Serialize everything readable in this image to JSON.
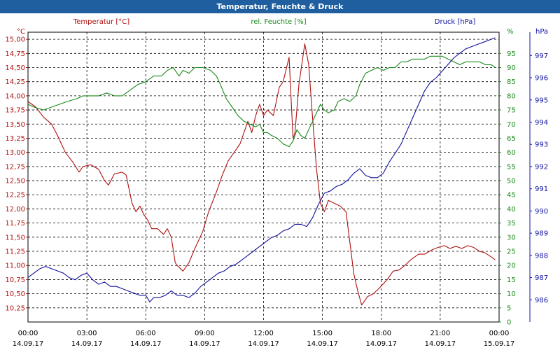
{
  "window": {
    "title": "Temperatur, Feuchte & Druck"
  },
  "chart_data": {
    "type": "line",
    "title": "Temperatur, Feuchte & Druck",
    "colors": {
      "temperature": "#b01010",
      "humidity": "#1a8a1a",
      "pressure": "#1010a0",
      "grid": "#000000"
    },
    "grid": true,
    "x": {
      "tick_times": [
        "00:00",
        "03:00",
        "06:00",
        "09:00",
        "12:00",
        "15:00",
        "18:00",
        "21:00",
        "00:00"
      ],
      "tick_dates": [
        "14.09.17",
        "14.09.17",
        "14.09.17",
        "14.09.17",
        "14.09.17",
        "14.09.17",
        "14.09.17",
        "14.09.17",
        "15.09.17"
      ],
      "range_hours": [
        0,
        24
      ]
    },
    "axes": {
      "temperature": {
        "label": "Temperatur [°C]",
        "unit": "°C",
        "ylim": [
          10.0,
          15.125
        ],
        "ticks": [
          "10,25",
          "10,50",
          "10,75",
          "11,00",
          "11,25",
          "11,50",
          "11,75",
          "12,00",
          "12,25",
          "12,50",
          "12,75",
          "13,00",
          "13,25",
          "13,50",
          "13,75",
          "14,00",
          "14,25",
          "14,50",
          "14,75",
          "15,00"
        ]
      },
      "humidity": {
        "label": "rel. Feuchte [%]",
        "unit": "%",
        "ylim": [
          0,
          102.5
        ],
        "ticks": [
          "0",
          "5",
          "10",
          "15",
          "20",
          "25",
          "30",
          "35",
          "40",
          "45",
          "50",
          "55",
          "60",
          "65",
          "70",
          "75",
          "80",
          "85",
          "90",
          "95"
        ]
      },
      "pressure": {
        "label": "Druck [hPa]",
        "unit": "hPa",
        "ylim": [
          985.0,
          998.05
        ],
        "ticks": [
          "986",
          "987",
          "988",
          "989",
          "990",
          "991",
          "992",
          "993",
          "994",
          "995",
          "996",
          "997"
        ]
      }
    },
    "series": [
      {
        "name": "Temperatur [°C]",
        "axis": "temperature",
        "points": [
          [
            0,
            13.9
          ],
          [
            0.4,
            13.8
          ],
          [
            0.8,
            13.62
          ],
          [
            1.2,
            13.5
          ],
          [
            1.5,
            13.3
          ],
          [
            1.9,
            13.0
          ],
          [
            2.3,
            12.82
          ],
          [
            2.6,
            12.65
          ],
          [
            2.8,
            12.75
          ],
          [
            3.2,
            12.78
          ],
          [
            3.6,
            12.7
          ],
          [
            3.9,
            12.5
          ],
          [
            4.1,
            12.42
          ],
          [
            4.4,
            12.62
          ],
          [
            4.8,
            12.65
          ],
          [
            5.0,
            12.6
          ],
          [
            5.3,
            12.1
          ],
          [
            5.5,
            11.95
          ],
          [
            5.7,
            12.05
          ],
          [
            5.9,
            11.9
          ],
          [
            6.1,
            11.8
          ],
          [
            6.3,
            11.65
          ],
          [
            6.6,
            11.65
          ],
          [
            6.9,
            11.55
          ],
          [
            7.1,
            11.65
          ],
          [
            7.3,
            11.5
          ],
          [
            7.5,
            11.05
          ],
          [
            7.6,
            11.0
          ],
          [
            7.9,
            10.9
          ],
          [
            8.2,
            11.05
          ],
          [
            8.5,
            11.3
          ],
          [
            8.9,
            11.6
          ],
          [
            9.2,
            11.95
          ],
          [
            9.6,
            12.3
          ],
          [
            9.9,
            12.6
          ],
          [
            10.2,
            12.85
          ],
          [
            10.5,
            13.0
          ],
          [
            10.8,
            13.15
          ],
          [
            11.0,
            13.35
          ],
          [
            11.2,
            13.55
          ],
          [
            11.4,
            13.35
          ],
          [
            11.6,
            13.65
          ],
          [
            11.8,
            13.85
          ],
          [
            12.0,
            13.65
          ],
          [
            12.2,
            13.75
          ],
          [
            12.5,
            13.65
          ],
          [
            12.8,
            14.15
          ],
          [
            13.0,
            14.25
          ],
          [
            13.3,
            14.68
          ],
          [
            13.5,
            13.25
          ],
          [
            13.6,
            13.35
          ],
          [
            13.8,
            14.2
          ],
          [
            14.1,
            14.92
          ],
          [
            14.3,
            14.55
          ],
          [
            14.5,
            13.6
          ],
          [
            14.7,
            12.7
          ],
          [
            14.9,
            12.1
          ],
          [
            15.1,
            11.95
          ],
          [
            15.3,
            12.15
          ],
          [
            15.6,
            12.1
          ],
          [
            15.9,
            12.05
          ],
          [
            16.2,
            11.95
          ],
          [
            16.4,
            11.4
          ],
          [
            16.6,
            10.85
          ],
          [
            16.8,
            10.55
          ],
          [
            17.0,
            10.3
          ],
          [
            17.3,
            10.45
          ],
          [
            17.6,
            10.5
          ],
          [
            17.9,
            10.6
          ],
          [
            18.3,
            10.75
          ],
          [
            18.6,
            10.9
          ],
          [
            18.9,
            10.92
          ],
          [
            19.2,
            11.0
          ],
          [
            19.5,
            11.1
          ],
          [
            19.9,
            11.2
          ],
          [
            20.2,
            11.2
          ],
          [
            20.6,
            11.28
          ],
          [
            20.9,
            11.32
          ],
          [
            21.2,
            11.35
          ],
          [
            21.5,
            11.3
          ],
          [
            21.8,
            11.34
          ],
          [
            22.1,
            11.3
          ],
          [
            22.4,
            11.35
          ],
          [
            22.7,
            11.32
          ],
          [
            23.0,
            11.25
          ],
          [
            23.3,
            11.22
          ],
          [
            23.6,
            11.15
          ],
          [
            23.8,
            11.1
          ]
        ]
      },
      {
        "name": "rel. Feuchte [%]",
        "axis": "humidity",
        "points": [
          [
            0,
            77
          ],
          [
            0.3,
            76
          ],
          [
            0.8,
            75
          ],
          [
            1.2,
            76
          ],
          [
            1.6,
            77
          ],
          [
            2.0,
            78
          ],
          [
            2.5,
            79
          ],
          [
            2.8,
            80
          ],
          [
            3.2,
            80
          ],
          [
            3.6,
            80
          ],
          [
            4.0,
            81
          ],
          [
            4.4,
            80
          ],
          [
            4.8,
            80
          ],
          [
            5.2,
            82
          ],
          [
            5.6,
            84
          ],
          [
            6.0,
            85
          ],
          [
            6.4,
            87
          ],
          [
            6.8,
            87
          ],
          [
            7.1,
            89
          ],
          [
            7.4,
            90
          ],
          [
            7.7,
            87
          ],
          [
            7.9,
            89
          ],
          [
            8.2,
            88
          ],
          [
            8.5,
            90
          ],
          [
            8.9,
            90
          ],
          [
            9.3,
            89
          ],
          [
            9.6,
            87
          ],
          [
            9.8,
            84
          ],
          [
            10.1,
            79
          ],
          [
            10.4,
            76
          ],
          [
            10.7,
            73
          ],
          [
            11.0,
            71
          ],
          [
            11.3,
            70
          ],
          [
            11.6,
            69
          ],
          [
            11.8,
            70
          ],
          [
            12.0,
            67
          ],
          [
            12.2,
            67
          ],
          [
            12.4,
            66
          ],
          [
            12.7,
            65
          ],
          [
            13.0,
            63
          ],
          [
            13.3,
            62
          ],
          [
            13.5,
            64
          ],
          [
            13.7,
            68
          ],
          [
            13.9,
            66
          ],
          [
            14.1,
            65
          ],
          [
            14.3,
            68
          ],
          [
            14.5,
            71
          ],
          [
            14.7,
            74
          ],
          [
            14.9,
            77
          ],
          [
            15.1,
            75
          ],
          [
            15.3,
            74
          ],
          [
            15.6,
            75
          ],
          [
            15.8,
            78
          ],
          [
            16.1,
            79
          ],
          [
            16.4,
            78
          ],
          [
            16.7,
            80
          ],
          [
            16.9,
            84
          ],
          [
            17.2,
            88
          ],
          [
            17.5,
            89
          ],
          [
            17.8,
            90
          ],
          [
            18.1,
            89
          ],
          [
            18.4,
            90
          ],
          [
            18.7,
            90
          ],
          [
            19.0,
            92
          ],
          [
            19.3,
            92
          ],
          [
            19.6,
            93
          ],
          [
            19.9,
            93
          ],
          [
            20.2,
            93
          ],
          [
            20.5,
            94
          ],
          [
            20.8,
            94
          ],
          [
            21.1,
            94
          ],
          [
            21.4,
            93
          ],
          [
            21.7,
            92
          ],
          [
            22.0,
            91
          ],
          [
            22.3,
            92
          ],
          [
            22.6,
            92
          ],
          [
            23.0,
            92
          ],
          [
            23.3,
            91
          ],
          [
            23.6,
            91
          ],
          [
            23.8,
            90
          ]
        ]
      },
      {
        "name": "Druck [hPa]",
        "axis": "pressure",
        "points": [
          [
            0,
            987.0
          ],
          [
            0.3,
            987.2
          ],
          [
            0.6,
            987.4
          ],
          [
            0.9,
            987.5
          ],
          [
            1.2,
            987.4
          ],
          [
            1.5,
            987.3
          ],
          [
            1.8,
            987.2
          ],
          [
            2.1,
            987.0
          ],
          [
            2.4,
            986.9
          ],
          [
            2.7,
            987.1
          ],
          [
            3.0,
            987.2
          ],
          [
            3.3,
            986.9
          ],
          [
            3.6,
            986.7
          ],
          [
            3.9,
            986.8
          ],
          [
            4.2,
            986.6
          ],
          [
            4.5,
            986.6
          ],
          [
            4.8,
            986.5
          ],
          [
            5.1,
            986.4
          ],
          [
            5.4,
            986.3
          ],
          [
            5.7,
            986.2
          ],
          [
            6.0,
            986.2
          ],
          [
            6.2,
            985.9
          ],
          [
            6.4,
            986.1
          ],
          [
            6.7,
            986.1
          ],
          [
            7.0,
            986.2
          ],
          [
            7.3,
            986.4
          ],
          [
            7.6,
            986.2
          ],
          [
            7.9,
            986.2
          ],
          [
            8.2,
            986.1
          ],
          [
            8.5,
            986.3
          ],
          [
            8.8,
            986.6
          ],
          [
            9.1,
            986.8
          ],
          [
            9.4,
            987.0
          ],
          [
            9.7,
            987.2
          ],
          [
            10.0,
            987.3
          ],
          [
            10.3,
            987.5
          ],
          [
            10.6,
            987.6
          ],
          [
            10.9,
            987.8
          ],
          [
            11.2,
            988.0
          ],
          [
            11.5,
            988.2
          ],
          [
            11.8,
            988.4
          ],
          [
            12.1,
            988.6
          ],
          [
            12.4,
            988.8
          ],
          [
            12.7,
            988.9
          ],
          [
            13.0,
            989.1
          ],
          [
            13.3,
            989.2
          ],
          [
            13.6,
            989.4
          ],
          [
            13.9,
            989.4
          ],
          [
            14.2,
            989.3
          ],
          [
            14.5,
            989.7
          ],
          [
            14.8,
            990.3
          ],
          [
            15.1,
            990.8
          ],
          [
            15.4,
            990.9
          ],
          [
            15.7,
            991.1
          ],
          [
            16.0,
            991.2
          ],
          [
            16.3,
            991.4
          ],
          [
            16.6,
            991.7
          ],
          [
            16.9,
            991.9
          ],
          [
            17.2,
            991.6
          ],
          [
            17.5,
            991.5
          ],
          [
            17.8,
            991.5
          ],
          [
            18.1,
            991.7
          ],
          [
            18.4,
            992.2
          ],
          [
            18.7,
            992.6
          ],
          [
            19.0,
            993.0
          ],
          [
            19.3,
            993.6
          ],
          [
            19.6,
            994.2
          ],
          [
            19.9,
            994.8
          ],
          [
            20.2,
            995.4
          ],
          [
            20.5,
            995.8
          ],
          [
            20.8,
            996.0
          ],
          [
            21.1,
            996.3
          ],
          [
            21.4,
            996.6
          ],
          [
            21.7,
            996.9
          ],
          [
            22.0,
            997.1
          ],
          [
            22.3,
            997.3
          ],
          [
            22.6,
            997.4
          ],
          [
            22.9,
            997.5
          ],
          [
            23.2,
            997.6
          ],
          [
            23.5,
            997.7
          ],
          [
            23.8,
            997.8
          ]
        ]
      }
    ]
  }
}
